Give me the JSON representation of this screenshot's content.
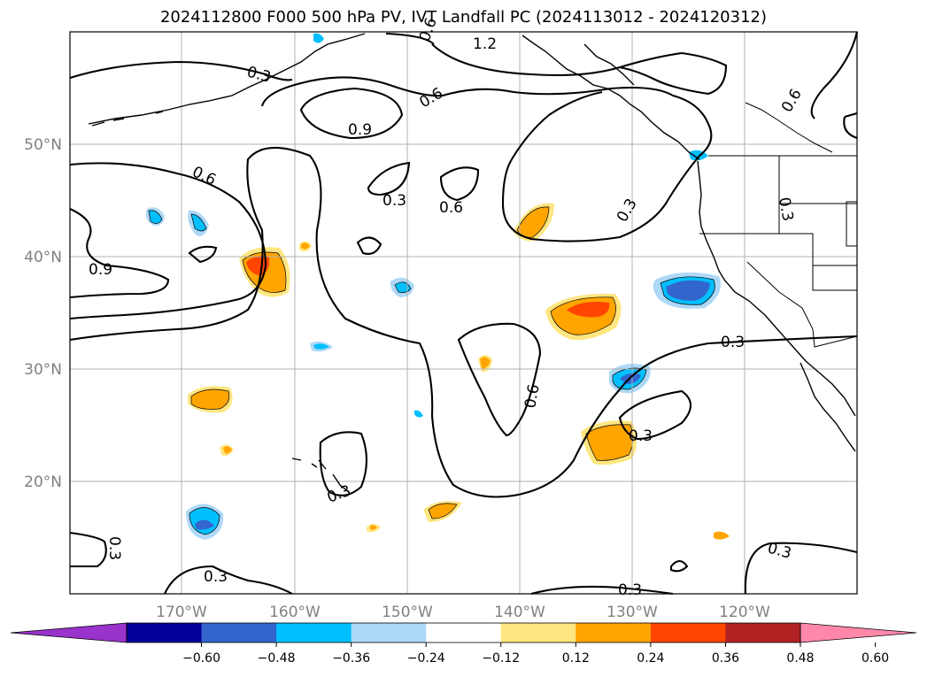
{
  "title": "2024112800 F000 500 hPa PV, IVT Landfall PC (2024113012 - 2024120312)",
  "map": {
    "lat_labels": [
      "50°N",
      "40°N",
      "30°N",
      "20°N"
    ],
    "lon_labels": [
      "170°W",
      "160°W",
      "150°W",
      "140°W",
      "130°W",
      "120°W"
    ],
    "contour_labels": [
      "1.2",
      "0.6",
      "0.3",
      "0.9",
      "0.6",
      "0.3",
      "0.6",
      "0.3",
      "0.9",
      "0.6",
      "0.3",
      "0.6",
      "0.3",
      "0.3",
      "0.3",
      "0.3",
      "0.3",
      "0.3",
      "0.6"
    ]
  },
  "colorbar": {
    "ticks": [
      "−0.60",
      "−0.48",
      "−0.36",
      "−0.24",
      "−0.12",
      "0.12",
      "0.24",
      "0.36",
      "0.48",
      "0.60"
    ],
    "colors": [
      "#9933cc",
      "#000099",
      "#3366cc",
      "#00bfff",
      "#add8f7",
      "#ffffff",
      "#ffe680",
      "#ffa500",
      "#ff4500",
      "#b22222",
      "#ff88aa"
    ]
  }
}
